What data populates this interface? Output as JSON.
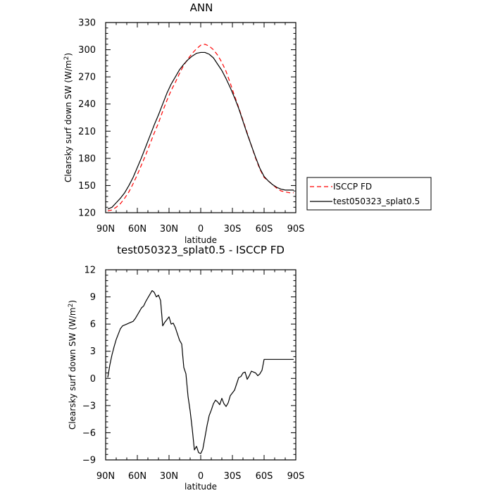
{
  "chart_data": [
    {
      "type": "line",
      "title": "ANN",
      "xlabel": "latitude",
      "ylabel": "Clearsky surf down SW (W/m²)",
      "ylabel_main": "Clearsky surf down SW (W/m",
      "ylabel_sup": "2",
      "ylabel_end": ")",
      "x_tick_labels": [
        "90N",
        "60N",
        "30N",
        "0",
        "30S",
        "60S",
        "90S"
      ],
      "x_tick_values": [
        90,
        60,
        30,
        0,
        -30,
        -60,
        -90
      ],
      "y_ticks": [
        120,
        150,
        180,
        210,
        240,
        270,
        300,
        330
      ],
      "xlim": [
        90,
        -90
      ],
      "ylim": [
        120,
        330
      ],
      "grid": false,
      "legend_position": "right",
      "series": [
        {
          "name": "ISCCP FD",
          "color": "#ff0000",
          "dash": "dashed",
          "x": [
            88,
            84,
            80,
            76,
            72,
            68,
            64,
            60,
            56,
            52,
            48,
            44,
            40,
            36,
            32,
            28,
            24,
            20,
            16,
            12,
            8,
            4,
            0,
            -4,
            -8,
            -12,
            -16,
            -20,
            -24,
            -28,
            -32,
            -36,
            -40,
            -44,
            -48,
            -52,
            -56,
            -60,
            -64,
            -68,
            -72,
            -76,
            -80,
            -84,
            -88
          ],
          "values": [
            122,
            123,
            126,
            130,
            136,
            143,
            152,
            162,
            173,
            184,
            196,
            208,
            219,
            232,
            244,
            255,
            264,
            274,
            283,
            290,
            296,
            301,
            305,
            306,
            304,
            300,
            294,
            286,
            276,
            263,
            249,
            236,
            222,
            208,
            194,
            180,
            168,
            159,
            155,
            151,
            147,
            144,
            143,
            142,
            142
          ]
        },
        {
          "name": "test050323_splat0.5",
          "color": "#000000",
          "dash": "solid",
          "x": [
            88,
            84,
            80,
            76,
            72,
            68,
            64,
            60,
            56,
            52,
            48,
            44,
            40,
            36,
            32,
            28,
            24,
            20,
            16,
            12,
            8,
            4,
            0,
            -4,
            -8,
            -12,
            -16,
            -20,
            -24,
            -28,
            -32,
            -36,
            -40,
            -44,
            -48,
            -52,
            -56,
            -60,
            -64,
            -68,
            -72,
            -76,
            -80,
            -84,
            -88
          ],
          "values": [
            124,
            126,
            131,
            136,
            142,
            150,
            159,
            170,
            181,
            193,
            205,
            217,
            228,
            240,
            252,
            262,
            270,
            278,
            284,
            289,
            293,
            296,
            297,
            297,
            295,
            291,
            284,
            277,
            268,
            258,
            247,
            235,
            221,
            207,
            194,
            181,
            169,
            160,
            155,
            151,
            148,
            146,
            145,
            145,
            145
          ]
        }
      ]
    },
    {
      "type": "line",
      "title": "test050323_splat0.5 - ISCCP FD",
      "xlabel": "latitude",
      "ylabel": "Clearsky surf down SW (W/m²)",
      "ylabel_main": "Clearsky surf down SW (W/m",
      "ylabel_sup": "2",
      "ylabel_end": ")",
      "x_tick_labels": [
        "90N",
        "60N",
        "30N",
        "0",
        "30S",
        "60S",
        "90S"
      ],
      "x_tick_values": [
        90,
        60,
        30,
        0,
        -30,
        -60,
        -90
      ],
      "y_ticks": [
        -9,
        -6,
        -3,
        0,
        3,
        6,
        9,
        12
      ],
      "xlim": [
        90,
        -90
      ],
      "ylim": [
        -9,
        12
      ],
      "grid": false,
      "series": [
        {
          "color": "#000000",
          "dash": "solid",
          "x": [
            88,
            86,
            84,
            82,
            80,
            78,
            76,
            74,
            72,
            70,
            68,
            66,
            64,
            62,
            60,
            58,
            56,
            54,
            52,
            50,
            48,
            46,
            44,
            42,
            40,
            38,
            36,
            34,
            32,
            30,
            28,
            26,
            24,
            22,
            20,
            18,
            16,
            14,
            12,
            10,
            8,
            6,
            4,
            2,
            0,
            -2,
            -4,
            -6,
            -8,
            -10,
            -12,
            -14,
            -16,
            -18,
            -20,
            -22,
            -24,
            -26,
            -28,
            -30,
            -32,
            -34,
            -36,
            -38,
            -40,
            -42,
            -44,
            -46,
            -48,
            -50,
            -52,
            -54,
            -56,
            -58,
            -60,
            -62,
            -64,
            -66,
            -68,
            -70,
            -72,
            -74,
            -76,
            -78,
            -80,
            -82,
            -84,
            -86,
            -88
          ],
          "values": [
            0.1,
            1.5,
            2.6,
            3.5,
            4.3,
            4.9,
            5.5,
            5.8,
            5.9,
            6.0,
            6.1,
            6.2,
            6.3,
            6.6,
            7.0,
            7.4,
            7.8,
            8.0,
            8.5,
            8.9,
            9.3,
            9.7,
            9.5,
            9.0,
            9.2,
            8.6,
            5.8,
            6.2,
            6.5,
            6.8,
            6.0,
            6.1,
            5.6,
            4.9,
            4.2,
            3.8,
            1.2,
            0.5,
            -2.0,
            -3.6,
            -5.6,
            -7.9,
            -7.5,
            -8.2,
            -8.3,
            -7.8,
            -6.5,
            -5.2,
            -4.1,
            -3.5,
            -2.8,
            -2.4,
            -2.6,
            -2.9,
            -2.2,
            -2.8,
            -3.1,
            -2.7,
            -1.9,
            -1.6,
            -1.3,
            -0.6,
            0.1,
            0.2,
            0.6,
            0.7,
            -0.1,
            0.3,
            0.8,
            0.7,
            0.6,
            0.3,
            0.5,
            0.9,
            2.1,
            2.1,
            2.1,
            2.1,
            2.1,
            2.1,
            2.1,
            2.1,
            2.1,
            2.1,
            2.1,
            2.1,
            2.1,
            2.1,
            2.1
          ]
        }
      ]
    }
  ]
}
